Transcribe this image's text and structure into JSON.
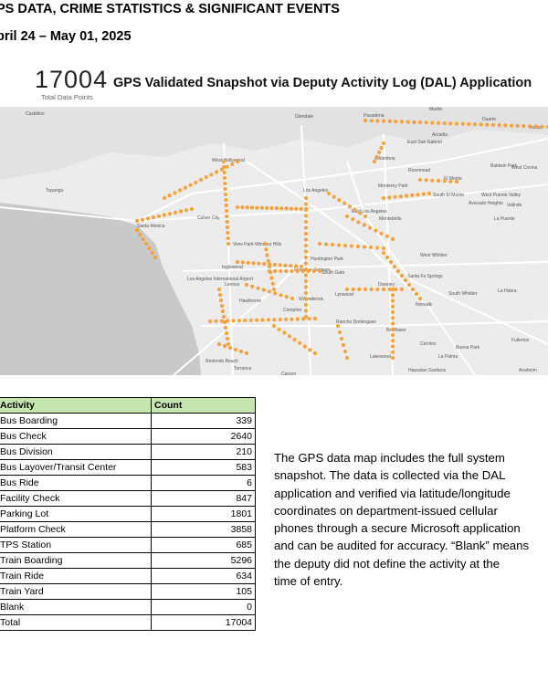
{
  "header": {
    "line1": "PS DATA, CRIME STATISTICS & SIGNIFICANT EVENTS",
    "line2": "pril 24 – May 01, 2025"
  },
  "summary": {
    "total_value": "17004",
    "total_label": "Total Data Points",
    "map_title": "GPS Validated Snapshot via Deputy Activity Log (DAL) Application"
  },
  "map": {
    "colors": {
      "land": "#ececec",
      "water": "#c9c9c9",
      "road": "#ffffff",
      "point": "#f7a13a"
    },
    "place_labels": [
      "Castellos",
      "Glendale",
      "Pasadena",
      "Madre",
      "Duarte",
      "Azusa",
      "Arcadia",
      "East San Gabriel",
      "Alhambria",
      "Rosemead",
      "El Monte",
      "Baldwin Park",
      "West Covina",
      "Monterey Park",
      "South El Monte",
      "West Puente Valley",
      "Avocado Heights",
      "Valinda",
      "La Puente",
      "Los Angeles",
      "East Los Angeles",
      "Montebello",
      "West Hollywood",
      "Culver City",
      "Santa Monica",
      "View Park-Windsor Hills",
      "Huntington Park",
      "Florence-Graham",
      "Inglewood",
      "South Gate",
      "Downey",
      "Santa Fe Springs",
      "West Whittier",
      "South Whittier",
      "La Habra",
      "Los Angeles International Airport",
      "Lennox",
      "Hawthorne",
      "Willowbrook",
      "Lynwood",
      "Rancho Dominguez",
      "Compton",
      "Norwalk",
      "Bellflower",
      "Cerritos",
      "Buena Park",
      "Fullerton",
      "Lakewood",
      "La Palma",
      "Redondo Beach",
      "Torrance",
      "Carson",
      "Hawaiian Gardens",
      "Anaheim",
      "Topanga"
    ]
  },
  "table": {
    "headers": [
      "Activity",
      "Count"
    ],
    "rows": [
      {
        "activity": "Bus Boarding",
        "count": "339"
      },
      {
        "activity": "Bus Check",
        "count": "2640"
      },
      {
        "activity": "Bus Division",
        "count": "210"
      },
      {
        "activity": "Bus Layover/Transit Center",
        "count": "583"
      },
      {
        "activity": "Bus Ride",
        "count": "6"
      },
      {
        "activity": "Facility Check",
        "count": "847"
      },
      {
        "activity": "Parking Lot",
        "count": "1801"
      },
      {
        "activity": "Platform Check",
        "count": "3858"
      },
      {
        "activity": "TPS Station",
        "count": "685"
      },
      {
        "activity": "Train Boarding",
        "count": "5296"
      },
      {
        "activity": "Train Ride",
        "count": "634"
      },
      {
        "activity": "Train Yard",
        "count": "105"
      },
      {
        "activity": "Blank",
        "count": "0"
      },
      {
        "activity": "Total",
        "count": "17004"
      }
    ]
  },
  "note_lines": [
    "The GPS data map includes the full system",
    "snapshot. The data is collected via the DAL",
    "application and verified via latitude/longitude",
    "coordinates on department-issued cellular",
    "phones through a secure Microsoft application",
    "and can be audited for accuracy. “Blank” means",
    "the deputy did not define the activity at the",
    "time of entry."
  ]
}
